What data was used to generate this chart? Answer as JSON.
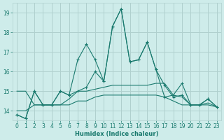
{
  "xlabel": "Humidex (Indice chaleur)",
  "x": [
    0,
    1,
    2,
    3,
    4,
    5,
    6,
    7,
    8,
    9,
    10,
    11,
    12,
    13,
    14,
    15,
    16,
    17,
    18,
    19,
    20,
    21,
    22,
    23
  ],
  "series": [
    [
      13.8,
      13.6,
      15.0,
      14.3,
      14.3,
      15.0,
      14.8,
      16.6,
      17.4,
      16.6,
      15.5,
      18.3,
      19.2,
      16.5,
      16.6,
      17.5,
      16.1,
      14.7,
      14.8,
      15.4,
      14.3,
      14.3,
      14.6,
      14.2
    ],
    [
      13.8,
      13.6,
      15.0,
      14.3,
      14.3,
      15.0,
      14.8,
      15.0,
      15.2,
      16.0,
      15.5,
      18.3,
      19.2,
      16.5,
      16.6,
      17.5,
      16.1,
      15.3,
      14.7,
      14.8,
      14.3,
      14.3,
      14.6,
      14.2
    ],
    [
      15.0,
      15.0,
      14.3,
      14.3,
      14.3,
      14.3,
      14.6,
      15.0,
      15.0,
      15.1,
      15.2,
      15.3,
      15.3,
      15.3,
      15.3,
      15.3,
      15.4,
      15.4,
      14.8,
      14.7,
      14.3,
      14.3,
      14.4,
      14.2
    ],
    [
      14.0,
      14.0,
      14.3,
      14.3,
      14.3,
      14.3,
      14.3,
      14.5,
      14.5,
      14.7,
      14.8,
      14.8,
      14.8,
      14.8,
      14.8,
      14.8,
      14.8,
      14.7,
      14.5,
      14.3,
      14.3,
      14.3,
      14.3,
      14.2
    ]
  ],
  "line_color": "#1a7a6e",
  "bg_color": "#ceecea",
  "grid_color": "#b0d0ce",
  "ylim": [
    13.5,
    19.5
  ],
  "yticks": [
    14,
    15,
    16,
    17,
    18,
    19
  ],
  "xticks": [
    0,
    1,
    2,
    3,
    4,
    5,
    6,
    7,
    8,
    9,
    10,
    11,
    12,
    13,
    14,
    15,
    16,
    17,
    18,
    19,
    20,
    21,
    22,
    23
  ]
}
